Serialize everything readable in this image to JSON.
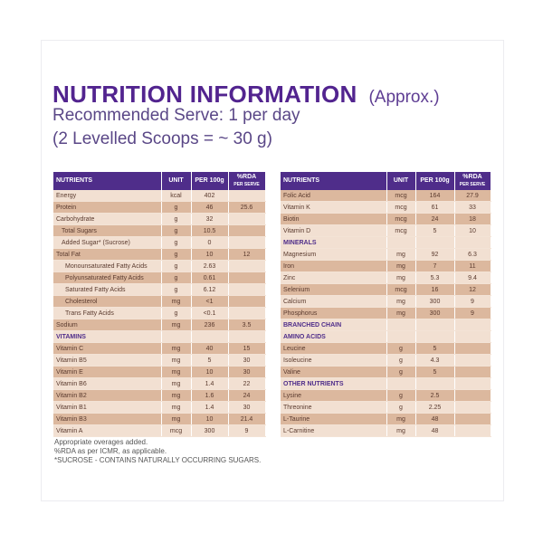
{
  "title": {
    "main": "NUTRITION INFORMATION",
    "approx": "(Approx.)"
  },
  "subtitle": {
    "line1": "Recommended Serve: 1 per day",
    "line2": "(2 Levelled Scoops = ~ 30 g)"
  },
  "headers": {
    "nutrients": "NUTRIENTS",
    "unit": "UNIT",
    "per100g": "PER 100g",
    "rda": "%RDA",
    "rda_sub": "PER SERVE"
  },
  "left_rows": [
    {
      "name": "Energy",
      "unit": "kcal",
      "per100": "402",
      "rda": "",
      "shade": "light",
      "indent": 0
    },
    {
      "name": "Protein",
      "unit": "g",
      "per100": "46",
      "rda": "25.6",
      "shade": "dark",
      "indent": 0
    },
    {
      "name": "Carbohydrate",
      "unit": "g",
      "per100": "32",
      "rda": "",
      "shade": "light",
      "indent": 0
    },
    {
      "name": "Total Sugars",
      "unit": "g",
      "per100": "10.5",
      "rda": "",
      "shade": "dark",
      "indent": 1
    },
    {
      "name": "Added Sugar* (Sucrose)",
      "unit": "g",
      "per100": "0",
      "rda": "",
      "shade": "light",
      "indent": 1
    },
    {
      "name": "Total Fat",
      "unit": "g",
      "per100": "10",
      "rda": "12",
      "shade": "dark",
      "indent": 0
    },
    {
      "name": "Monounsaturated Fatty Acids",
      "unit": "g",
      "per100": "2.63",
      "rda": "",
      "shade": "light",
      "indent": 2
    },
    {
      "name": "Polyunsaturated Fatty Acids",
      "unit": "g",
      "per100": "0.61",
      "rda": "",
      "shade": "dark",
      "indent": 2
    },
    {
      "name": "Saturated Fatty Acids",
      "unit": "g",
      "per100": "6.12",
      "rda": "",
      "shade": "light",
      "indent": 2
    },
    {
      "name": "Cholesterol",
      "unit": "mg",
      "per100": "<1",
      "rda": "",
      "shade": "dark",
      "indent": 2
    },
    {
      "name": "Trans Fatty Acids",
      "unit": "g",
      "per100": "<0.1",
      "rda": "",
      "shade": "light",
      "indent": 2
    },
    {
      "name": "Sodium",
      "unit": "mg",
      "per100": "236",
      "rda": "3.5",
      "shade": "dark",
      "indent": 0
    },
    {
      "name": "VITAMINS",
      "section": true
    },
    {
      "name": "Vitamin C",
      "unit": "mg",
      "per100": "40",
      "rda": "15",
      "shade": "dark",
      "indent": 0
    },
    {
      "name": "Vitamin B5",
      "unit": "mg",
      "per100": "5",
      "rda": "30",
      "shade": "light",
      "indent": 0
    },
    {
      "name": "Vitamin E",
      "unit": "mg",
      "per100": "10",
      "rda": "30",
      "shade": "dark",
      "indent": 0
    },
    {
      "name": "Vitamin B6",
      "unit": "mg",
      "per100": "1.4",
      "rda": "22",
      "shade": "light",
      "indent": 0
    },
    {
      "name": "Vitamin B2",
      "unit": "mg",
      "per100": "1.6",
      "rda": "24",
      "shade": "dark",
      "indent": 0
    },
    {
      "name": "Vitamin B1",
      "unit": "mg",
      "per100": "1.4",
      "rda": "30",
      "shade": "light",
      "indent": 0
    },
    {
      "name": "Vitamin B3",
      "unit": "mg",
      "per100": "10",
      "rda": "21.4",
      "shade": "dark",
      "indent": 0
    },
    {
      "name": "Vitamin A",
      "unit": "mcg",
      "per100": "300",
      "rda": "9",
      "shade": "light",
      "indent": 0
    }
  ],
  "right_rows": [
    {
      "name": "Folic Acid",
      "unit": "mcg",
      "per100": "164",
      "rda": "27.9",
      "shade": "dark",
      "indent": 0
    },
    {
      "name": "Vitamin K",
      "unit": "mcg",
      "per100": "61",
      "rda": "33",
      "shade": "light",
      "indent": 0
    },
    {
      "name": "Biotin",
      "unit": "mcg",
      "per100": "24",
      "rda": "18",
      "shade": "dark",
      "indent": 0
    },
    {
      "name": "Vitamin D",
      "unit": "mcg",
      "per100": "5",
      "rda": "10",
      "shade": "light",
      "indent": 0
    },
    {
      "name": "MINERALS",
      "section": true
    },
    {
      "name": "Magnesium",
      "unit": "mg",
      "per100": "92",
      "rda": "6.3",
      "shade": "light",
      "indent": 0
    },
    {
      "name": "Iron",
      "unit": "mg",
      "per100": "7",
      "rda": "11",
      "shade": "dark",
      "indent": 0
    },
    {
      "name": "Zinc",
      "unit": "mg",
      "per100": "5.3",
      "rda": "9.4",
      "shade": "light",
      "indent": 0
    },
    {
      "name": "Selenium",
      "unit": "mcg",
      "per100": "16",
      "rda": "12",
      "shade": "dark",
      "indent": 0
    },
    {
      "name": "Calcium",
      "unit": "mg",
      "per100": "300",
      "rda": "9",
      "shade": "light",
      "indent": 0
    },
    {
      "name": "Phosphorus",
      "unit": "mg",
      "per100": "300",
      "rda": "9",
      "shade": "dark",
      "indent": 0
    },
    {
      "name": "BRANCHED CHAIN",
      "section": true
    },
    {
      "name": "AMINO ACIDS",
      "section": true
    },
    {
      "name": "Leucine",
      "unit": "g",
      "per100": "5",
      "rda": "",
      "shade": "dark",
      "indent": 0
    },
    {
      "name": "Isoleucine",
      "unit": "g",
      "per100": "4.3",
      "rda": "",
      "shade": "light",
      "indent": 0
    },
    {
      "name": "Valine",
      "unit": "g",
      "per100": "5",
      "rda": "",
      "shade": "dark",
      "indent": 0
    },
    {
      "name": "OTHER NUTRIENTS",
      "section": true
    },
    {
      "name": "Lysine",
      "unit": "g",
      "per100": "2.5",
      "rda": "",
      "shade": "dark",
      "indent": 0
    },
    {
      "name": "Threonine",
      "unit": "g",
      "per100": "2.25",
      "rda": "",
      "shade": "light",
      "indent": 0
    },
    {
      "name": "L-Taurine",
      "unit": "mg",
      "per100": "48",
      "rda": "",
      "shade": "dark",
      "indent": 0
    },
    {
      "name": "L-Carnitine",
      "unit": "mg",
      "per100": "48",
      "rda": "",
      "shade": "light",
      "indent": 0
    }
  ],
  "footnotes": [
    "Appropriate overages added.",
    "%RDA as per ICMR, as applicable.",
    "*SUCROSE - CONTAINS NATURALLY OCCURRING SUGARS."
  ],
  "colors": {
    "brand_purple": "#4f2d8a",
    "row_dark": "#dcb89e",
    "row_light": "#f2e0d2"
  }
}
